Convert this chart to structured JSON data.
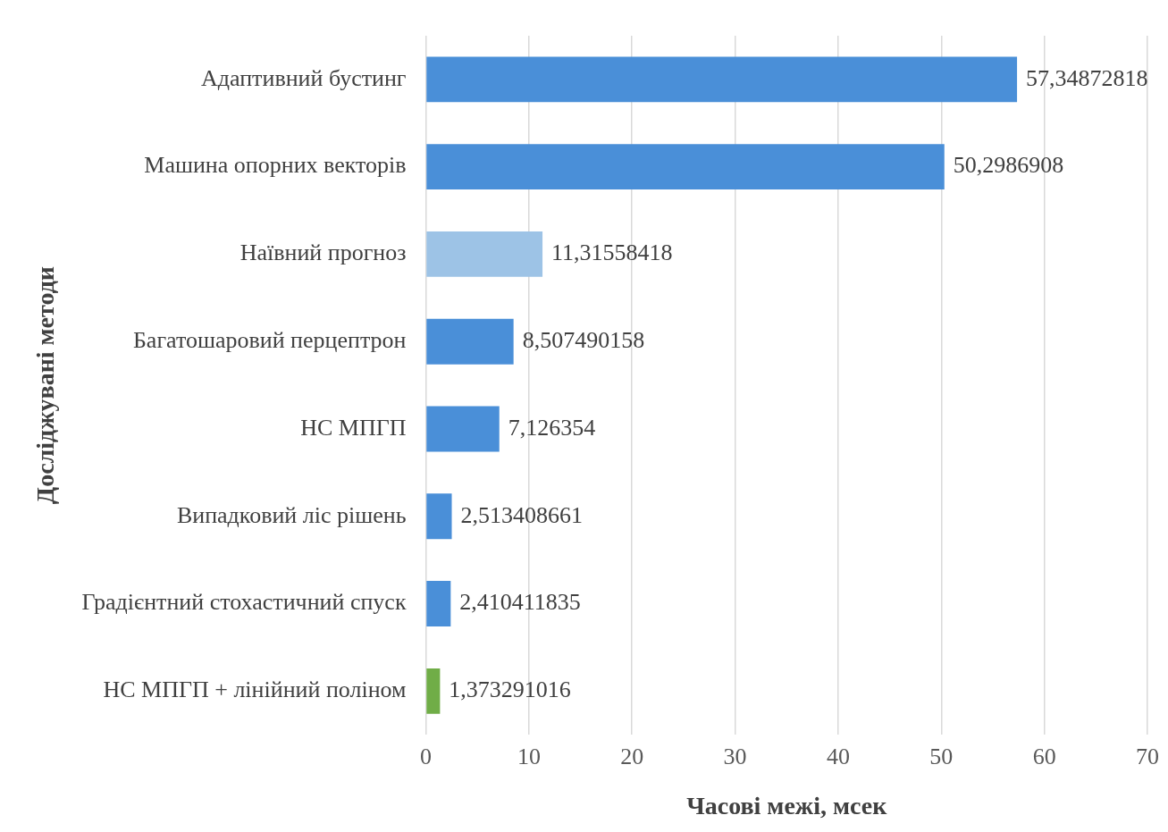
{
  "chart_data": {
    "type": "bar",
    "orientation": "horizontal",
    "xlabel": "Часові межі, мсек",
    "ylabel": "Досліджувані методи",
    "categories": [
      "Адаптивний бустинг",
      "Машина опорних векторів",
      "Наївний прогноз",
      "Багатошаровий перцептрон",
      "НС МПГП",
      "Випадковий ліс рішень",
      "Градієнтний стохастичний спуск",
      "НС МПГП + лінійний поліном"
    ],
    "values": [
      57.34872818,
      50.2986908,
      11.31558418,
      8.507490158,
      7.126354,
      2.513408661,
      2.410411835,
      1.373291016
    ],
    "value_labels": [
      "57,34872818",
      "50,2986908",
      "11,31558418",
      "8,507490158",
      "7,126354",
      "2,513408661",
      "2,410411835",
      "1,373291016"
    ],
    "colors": [
      "#4a8fd8",
      "#4a8fd8",
      "#9dc3e6",
      "#4a8fd8",
      "#4a8fd8",
      "#4a8fd8",
      "#4a8fd8",
      "#70ad47"
    ],
    "xlim": [
      0,
      70
    ],
    "xticks": [
      0,
      10,
      20,
      30,
      40,
      50,
      60,
      70
    ],
    "grid": "x",
    "legend": false
  }
}
